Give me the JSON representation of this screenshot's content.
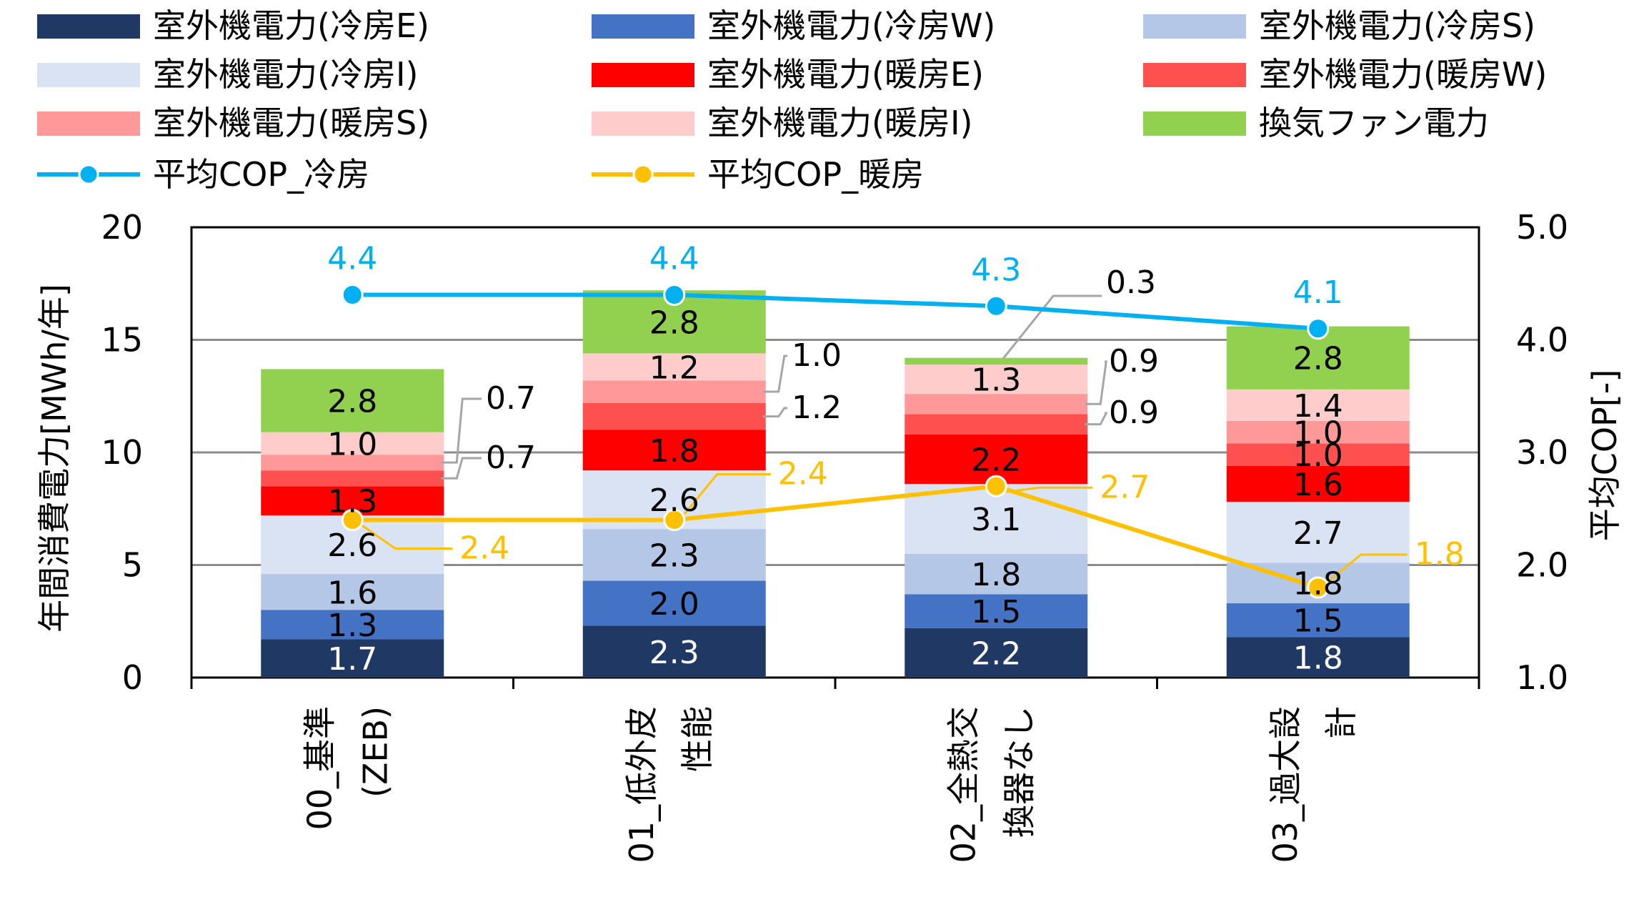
{
  "chart_data": {
    "type": "bar",
    "stacked": true,
    "title": "",
    "ylabel": "年間消費電力[MWh/年]",
    "y2label": "平均COP[-]",
    "ylim": [
      0,
      20
    ],
    "y2lim": [
      1.0,
      5.0
    ],
    "yticks": [
      "0",
      "5",
      "10",
      "15",
      "20"
    ],
    "y2ticks": [
      "1.0",
      "2.0",
      "3.0",
      "4.0",
      "5.0"
    ],
    "grid": true,
    "legend_position": "top",
    "categories": [
      [
        "00_基準",
        "(ZEB)"
      ],
      [
        "01_低外皮",
        "性能"
      ],
      [
        "02_全熱交",
        "換器なし"
      ],
      [
        "03_過大設",
        "計"
      ]
    ],
    "series": [
      {
        "name": "室外機電力(冷房E)",
        "color": "#203864",
        "values": [
          1.7,
          2.3,
          2.2,
          1.8
        ],
        "label_color": "#ffffff"
      },
      {
        "name": "室外機電力(冷房W)",
        "color": "#4472c4",
        "values": [
          1.3,
          2.0,
          1.5,
          1.5
        ],
        "label_color": "#000000"
      },
      {
        "name": "室外機電力(冷房S)",
        "color": "#b4c7e7",
        "values": [
          1.6,
          2.3,
          1.8,
          1.8
        ],
        "label_color": "#000000"
      },
      {
        "name": "室外機電力(冷房I)",
        "color": "#dae3f3",
        "values": [
          2.6,
          2.6,
          3.1,
          2.7
        ],
        "label_color": "#000000"
      },
      {
        "name": "室外機電力(暖房E)",
        "color": "#ff0000",
        "values": [
          1.3,
          1.8,
          2.2,
          1.6
        ],
        "label_color": "#000000"
      },
      {
        "name": "室外機電力(暖房W)",
        "color": "#ff5050",
        "values": [
          0.7,
          1.2,
          0.9,
          1.0
        ],
        "label_color": "#000000"
      },
      {
        "name": "室外機電力(暖房S)",
        "color": "#ff9999",
        "values": [
          0.7,
          1.0,
          0.9,
          1.0
        ],
        "label_color": "#000000"
      },
      {
        "name": "室外機電力(暖房I)",
        "color": "#ffcccc",
        "values": [
          1.0,
          1.2,
          1.3,
          1.4
        ],
        "label_color": "#000000"
      },
      {
        "name": "換気ファン電力",
        "color": "#92d050",
        "values": [
          2.8,
          2.8,
          0.3,
          2.8
        ],
        "label_color": "#000000"
      }
    ],
    "line_series": [
      {
        "name": "平均COP_冷房",
        "color": "#00b0f0",
        "axis": "y2",
        "values": [
          4.4,
          4.4,
          4.3,
          4.1
        ]
      },
      {
        "name": "平均COP_暖房",
        "color": "#ffc000",
        "axis": "y2",
        "values": [
          2.4,
          2.4,
          2.7,
          1.8
        ]
      }
    ]
  }
}
